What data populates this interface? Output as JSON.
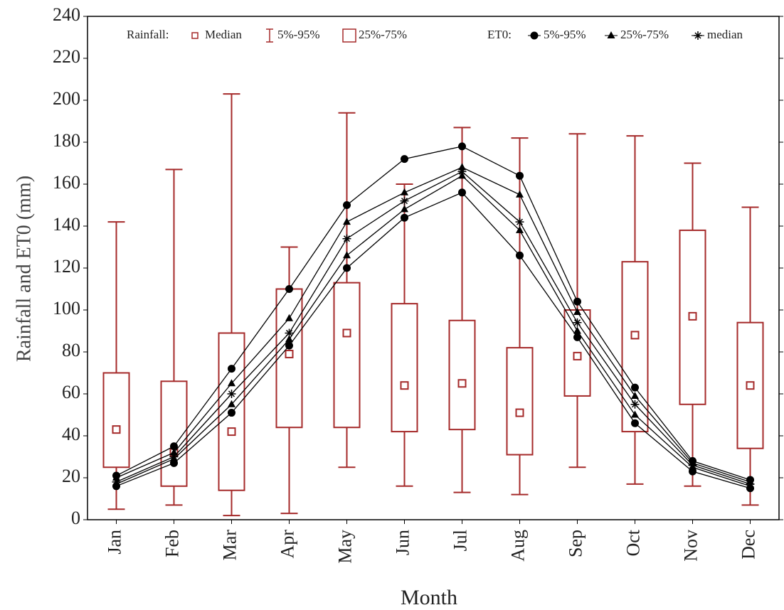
{
  "chart_data": {
    "type": "box-line",
    "x_label": "Month",
    "y_label": "Rainfall and ET0 (mm)",
    "categories": [
      "Jan",
      "Feb",
      "Mar",
      "Apr",
      "May",
      "Jun",
      "Jul",
      "Aug",
      "Sep",
      "Oct",
      "Nov",
      "Dec"
    ],
    "ylim": [
      0,
      240
    ],
    "yticks": [
      0,
      20,
      40,
      60,
      80,
      100,
      120,
      140,
      160,
      180,
      200,
      220,
      240
    ],
    "rainfall": {
      "label": "Rainfall:",
      "color": "#a52a2a",
      "median_name": "Median",
      "whisker_name": "5%-95%",
      "box_name": "25%-75%",
      "median": [
        43,
        32,
        42,
        79,
        89,
        64,
        65,
        51,
        78,
        88,
        97,
        64
      ],
      "q1": [
        25,
        16,
        14,
        44,
        44,
        42,
        43,
        31,
        59,
        42,
        55,
        34
      ],
      "q3": [
        70,
        66,
        89,
        110,
        113,
        103,
        95,
        82,
        100,
        123,
        138,
        94
      ],
      "p5": [
        5,
        7,
        2,
        3,
        25,
        16,
        13,
        12,
        25,
        17,
        16,
        7
      ],
      "p95": [
        142,
        167,
        203,
        130,
        194,
        160,
        187,
        182,
        184,
        183,
        170,
        149
      ]
    },
    "et0": {
      "label": "ET0:",
      "color": "#000000",
      "groups": [
        {
          "name": "5%-95%",
          "marker": "circle",
          "lines": [
            [
              16,
              27,
              51,
              83,
              120,
              144,
              156,
              126,
              87,
              46,
              23,
              15
            ],
            [
              21,
              35,
              72,
              110,
              150,
              172,
              178,
              164,
              104,
              63,
              28,
              19
            ]
          ]
        },
        {
          "name": "25%-75%",
          "marker": "triangle",
          "lines": [
            [
              17,
              29,
              55,
              86,
              126,
              148,
              164,
              138,
              90,
              50,
              25,
              16
            ],
            [
              20,
              32,
              65,
              96,
              142,
              156,
              168,
              155,
              99,
              59,
              27,
              18
            ]
          ]
        },
        {
          "name": "median",
          "marker": "cross",
          "lines": [
            [
              18,
              30,
              60,
              89,
              134,
              152,
              166,
              142,
              94,
              55,
              26,
              17
            ]
          ]
        }
      ]
    }
  }
}
